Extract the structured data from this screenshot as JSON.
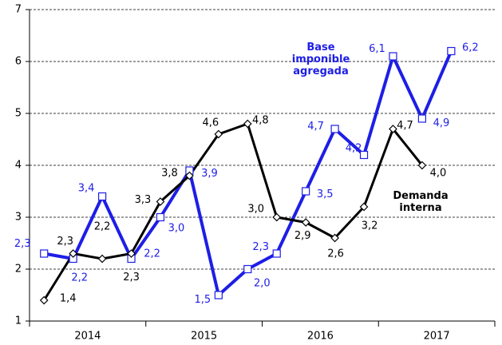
{
  "chart_data": {
    "type": "line",
    "groups": [
      "2014",
      "2015",
      "2016",
      "2017"
    ],
    "series": [
      {
        "name": "Base imponible agregada",
        "color": "#1e1ee6",
        "marker": "square",
        "values": [
          2.3,
          2.2,
          3.4,
          2.2,
          3.0,
          3.9,
          1.5,
          2.0,
          2.3,
          3.5,
          4.7,
          4.2,
          6.1,
          4.9,
          6.2
        ],
        "value_labels": [
          "2,3",
          "2,2",
          "3,4",
          "2,2",
          "3,0",
          "3,9",
          "1,5",
          "2,0",
          "2,3",
          "3,5",
          "4,7",
          "4,2",
          "6,1",
          "4,9",
          "6,2"
        ]
      },
      {
        "name": "Demanda interna",
        "color": "#000000",
        "marker": "diamond",
        "values": [
          1.4,
          2.3,
          2.2,
          2.3,
          3.3,
          3.8,
          4.6,
          4.8,
          3.0,
          2.9,
          2.6,
          3.2,
          4.7,
          4.0,
          null
        ],
        "value_labels": [
          "1,4",
          "2,3",
          "2,2",
          "2,3",
          "3,3",
          "3,8",
          "4,6",
          "4,8",
          "3,0",
          "2,9",
          "2,6",
          "3,2",
          "4,7",
          "4,0",
          null
        ]
      }
    ],
    "ylim": [
      1,
      7
    ],
    "yticks": [
      1,
      2,
      3,
      4,
      5,
      6,
      7
    ],
    "grid": true
  }
}
